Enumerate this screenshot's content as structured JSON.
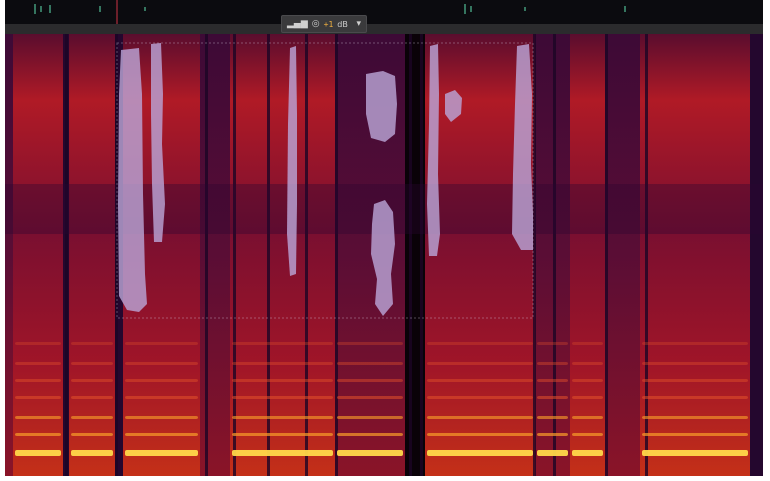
{
  "hud": {
    "gain_value": "+1",
    "gain_unit": "dB",
    "icons": [
      "volume-bars-icon",
      "knob-icon",
      "dropdown-arrow-icon"
    ]
  },
  "colors": {
    "background": "#1a0620",
    "low_energy": "#2b0a3d",
    "mid_energy": "#a3122a",
    "high_energy": "#f07a20",
    "peak_energy": "#ffd84a",
    "selection_overlay": "#b9a3d6"
  }
}
